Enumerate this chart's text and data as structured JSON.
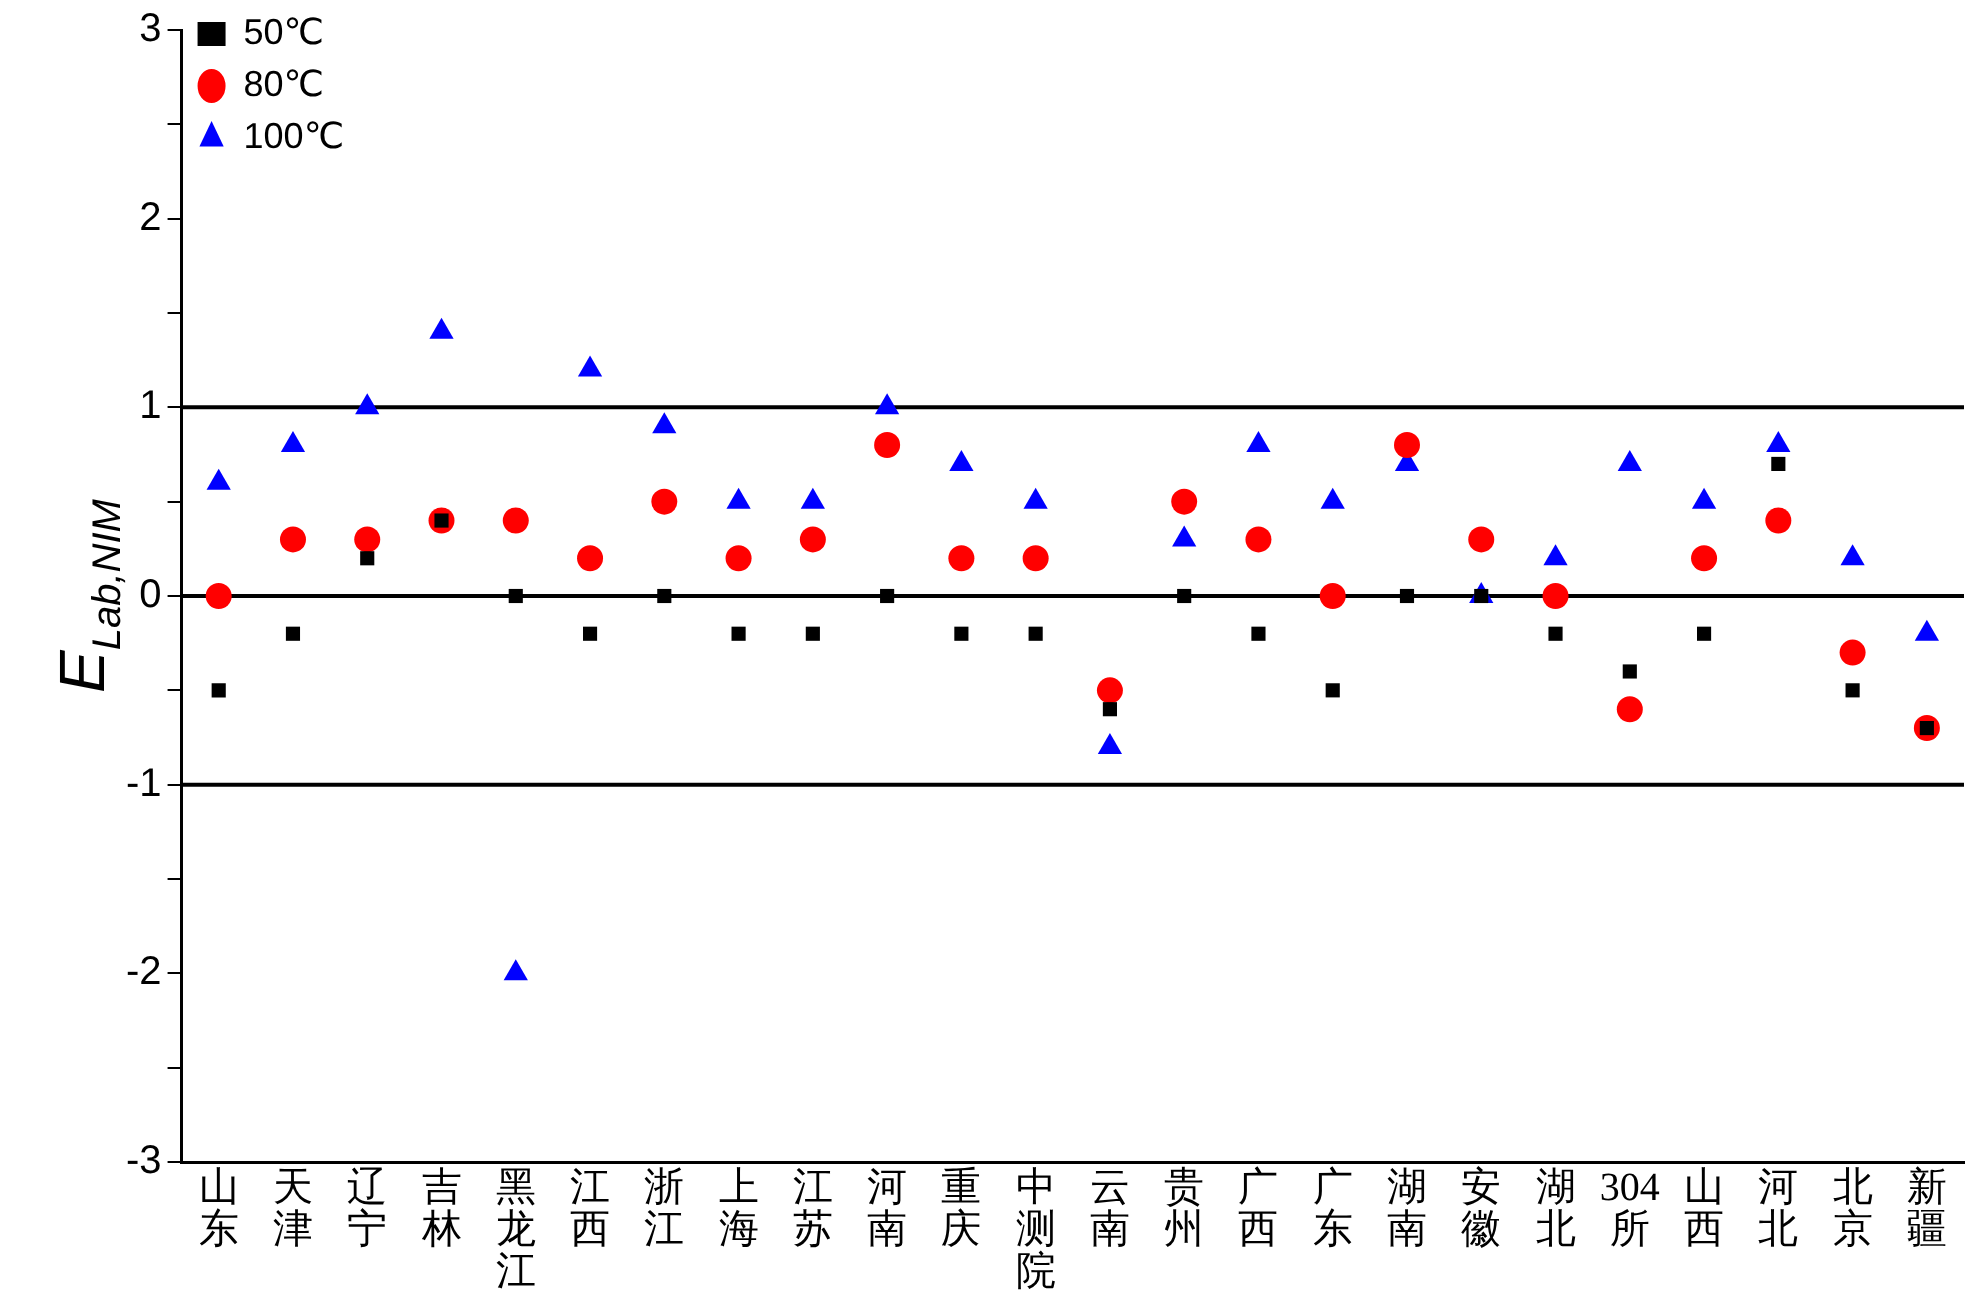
{
  "chart_data": {
    "type": "scatter",
    "ylabel": "E$_{Lab,NIM}$",
    "categories": [
      "山东",
      "天津",
      "辽宁",
      "吉林",
      "黑龙江",
      "江西",
      "浙江",
      "上海",
      "江苏",
      "河南",
      "重庆",
      "中测院",
      "云南",
      "贵州",
      "广西",
      "广东",
      "湖南",
      "安徽",
      "湖北",
      "304所",
      "山西",
      "河北",
      "北京",
      "新疆"
    ],
    "series": [
      {
        "name": "50℃",
        "color": "#000000",
        "marker": "square",
        "values": [
          -0.5,
          -0.2,
          0.2,
          0.4,
          0,
          -0.2,
          0,
          -0.2,
          -0.2,
          0,
          -0.2,
          -0.2,
          -0.6,
          0,
          -0.2,
          -0.5,
          0,
          0,
          -0.2,
          -0.4,
          -0.2,
          0.7,
          -0.5,
          -0.7
        ]
      },
      {
        "name": "80℃",
        "color": "#ff0000",
        "marker": "circle",
        "values": [
          0,
          0.3,
          0.3,
          0.4,
          0.4,
          0.2,
          0.5,
          0.2,
          0.3,
          0.8,
          0.2,
          0.2,
          -0.5,
          0.5,
          0.3,
          0,
          0.8,
          0.3,
          0,
          -0.6,
          0.2,
          0.4,
          -0.3,
          -0.7
        ]
      },
      {
        "name": "100℃",
        "color": "#0000ff",
        "marker": "triangle",
        "values": [
          0.6,
          0.8,
          1.0,
          1.4,
          -2,
          1.2,
          0.9,
          0.5,
          0.5,
          1.0,
          0.7,
          0.5,
          -0.8,
          0.3,
          0.8,
          0.5,
          0.7,
          0,
          0.2,
          0.7,
          0.5,
          0.8,
          0.2,
          -0.2
        ]
      }
    ],
    "ylim": [
      -3,
      3
    ],
    "yticks": [
      -3,
      {
        "value": -2.5,
        "label": null
      },
      -2,
      {
        "value": -1.5,
        "label": null
      },
      -1,
      {
        "value": -0.5,
        "label": null
      },
      0,
      {
        "value": 0.5,
        "label": null
      },
      1,
      {
        "value": 1.5,
        "label": null
      },
      2,
      {
        "value": 2.5,
        "label": null
      },
      3
    ],
    "ref_lines": [
      {
        "axis": "y",
        "value": 1,
        "color": "#000000"
      },
      {
        "axis": "y",
        "value": 0,
        "color": "#000000"
      },
      {
        "axis": "y",
        "value": -1,
        "color": "#000000"
      }
    ],
    "grid": false,
    "legend": "top left"
  }
}
